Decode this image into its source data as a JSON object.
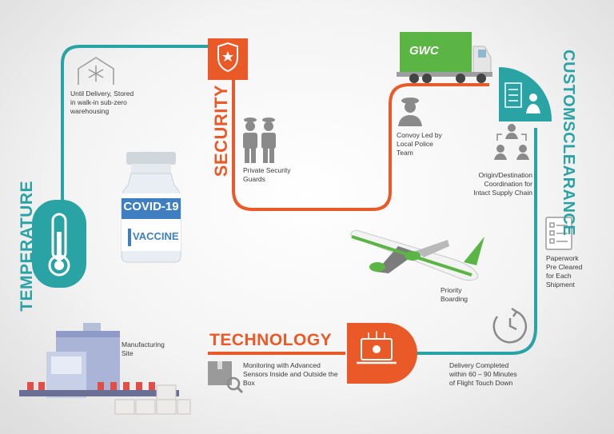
{
  "headings": {
    "temperature": "TEMPERATURE",
    "security": "SECURITY",
    "customs": [
      "CUSTOMS",
      "CLEARANCE"
    ],
    "technology": "TECHNOLOGY"
  },
  "labels": {
    "storage": [
      "Until Delivery, Stored",
      "in walk-in sub-zero",
      "warehousing"
    ],
    "guards": [
      "Private Security",
      "Guards"
    ],
    "convoy": [
      "Convoy Led by",
      "Local Police",
      "Team"
    ],
    "coordination": [
      "Origin/Destination",
      "Coordination for",
      "Intact Supply Chain"
    ],
    "paperwork": [
      "Paperwork",
      "Pre Cleared",
      "for Each",
      "Shipment"
    ],
    "boarding": [
      "Priority",
      "Boarding"
    ],
    "manufacturing": [
      "Manufacturing",
      "Site"
    ],
    "monitoring": [
      "Monitoring with Advanced",
      "Sensors Inside and Outside the",
      "Box"
    ],
    "delivery": [
      "Delivery Completed",
      "within 60 – 90 Minutes",
      "of Flight Touch Down"
    ]
  },
  "vaccine": {
    "name": "COVID-19",
    "type": "VACCINE"
  },
  "truck": {
    "brand": "GWC"
  },
  "colors": {
    "teal": "#2aa3a5",
    "orange": "#ea5a28",
    "green": "#5bb544",
    "blue": "#3f7fc1"
  }
}
